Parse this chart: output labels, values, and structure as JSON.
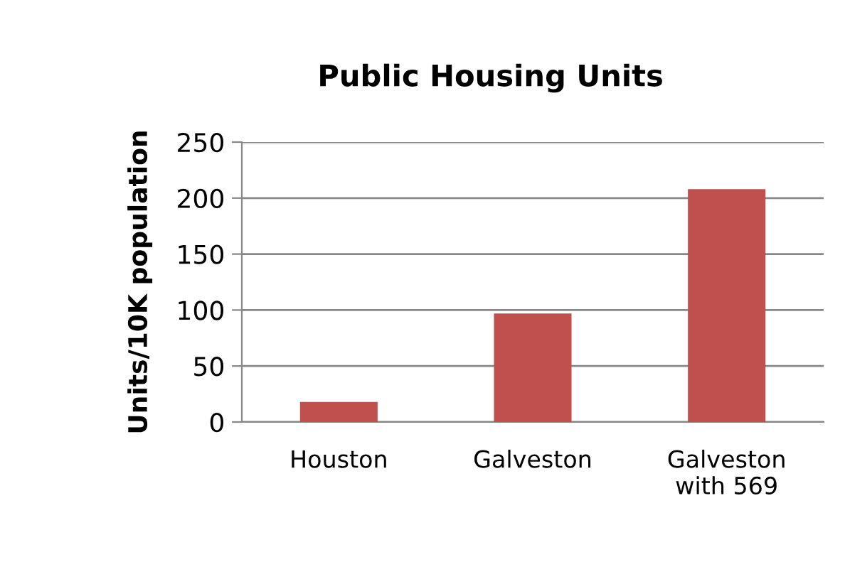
{
  "chart_data": {
    "type": "bar",
    "title": "Public Housing Units",
    "ylabel": "Units/10K population",
    "categories": [
      "Houston",
      "Galveston",
      "Galveston\nwith 569"
    ],
    "values": [
      18,
      97,
      208
    ],
    "color": "#c0504d",
    "ylim": [
      0,
      250
    ],
    "yticks": [
      0,
      50,
      100,
      150,
      200,
      250
    ],
    "grid": "y",
    "legend": false
  }
}
